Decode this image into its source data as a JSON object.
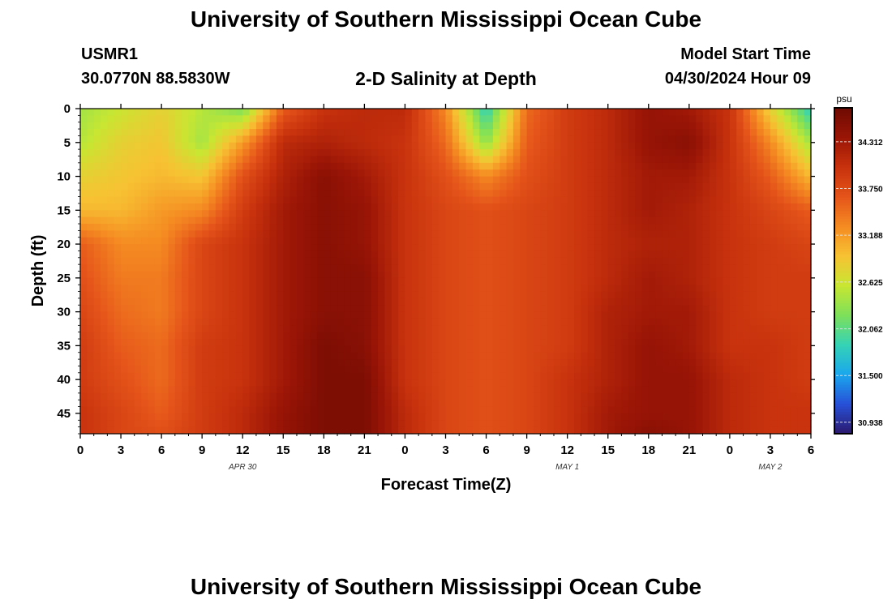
{
  "header": {
    "title": "University of Southern Mississippi Ocean Cube",
    "station_id": "USMR1",
    "station_location": "30.0770N  88.5830W",
    "plot_title": "2-D Salinity at Depth",
    "start_label": "Model Start Time",
    "start_time": "04/30/2024 Hour 09"
  },
  "footer": {
    "title": "University of Southern Mississippi Ocean Cube"
  },
  "colors": {
    "colormap": [
      "#2c1a6e",
      "#2750d8",
      "#1aa7ee",
      "#35d3b5",
      "#7ee05a",
      "#c8e632",
      "#f7c233",
      "#f58b22",
      "#e5541a",
      "#c8320d",
      "#9a1506",
      "#6e0a03"
    ]
  },
  "chart_data": {
    "type": "heatmap",
    "xlabel": "Forecast Time(Z)",
    "ylabel": "Depth (ft)",
    "x_tick_labels": [
      "0",
      "3",
      "6",
      "9",
      "12",
      "15",
      "18",
      "21",
      "0",
      "3",
      "6",
      "9",
      "12",
      "15",
      "18",
      "21",
      "0",
      "3",
      "6"
    ],
    "day_labels": [
      {
        "label": "APR 30",
        "center_hour": 12
      },
      {
        "label": "MAY 1",
        "center_hour": 36
      },
      {
        "label": "MAY 2",
        "center_hour": 51
      }
    ],
    "x_range_hours": [
      0,
      54
    ],
    "y_ticks": [
      0,
      5,
      10,
      15,
      20,
      25,
      30,
      35,
      40,
      45
    ],
    "y_range": [
      0,
      48
    ],
    "y_inverted": true,
    "colorbar": {
      "unit": "psu",
      "range": [
        30.8,
        34.72
      ],
      "tick_labels": [
        "34.312",
        "33.750",
        "33.188",
        "32.625",
        "32.062",
        "31.500",
        "30.938"
      ],
      "tick_values": [
        34.312,
        33.75,
        33.188,
        32.625,
        32.062,
        31.5,
        30.938
      ]
    },
    "time_hours": [
      0,
      3,
      6,
      9,
      12,
      15,
      18,
      21,
      24,
      27,
      30,
      33,
      36,
      39,
      42,
      45,
      48,
      51,
      54
    ],
    "depths_ft": [
      0,
      5,
      10,
      15,
      20,
      25,
      30,
      35,
      40,
      45,
      48
    ],
    "salinity_psu": [
      [
        32.4,
        32.6,
        32.8,
        32.5,
        32.2,
        33.6,
        34.0,
        34.1,
        34.1,
        33.3,
        31.8,
        33.5,
        33.9,
        34.1,
        34.4,
        34.3,
        34.0,
        32.8,
        31.8
      ],
      [
        32.5,
        32.8,
        32.9,
        32.4,
        33.2,
        34.1,
        34.2,
        34.1,
        34.0,
        33.5,
        32.3,
        33.6,
        33.9,
        34.1,
        34.4,
        34.5,
        34.0,
        33.3,
        32.4
      ],
      [
        32.8,
        32.9,
        33.0,
        32.9,
        33.7,
        34.2,
        34.5,
        34.3,
        34.0,
        33.7,
        33.3,
        33.7,
        33.9,
        34.1,
        34.3,
        34.3,
        34.0,
        33.6,
        33.0
      ],
      [
        33.0,
        33.0,
        33.2,
        33.3,
        33.9,
        34.3,
        34.5,
        34.4,
        34.0,
        33.8,
        33.7,
        33.8,
        33.9,
        34.1,
        34.3,
        34.2,
        34.0,
        33.8,
        33.6
      ],
      [
        33.6,
        33.3,
        33.3,
        33.8,
        34.0,
        34.3,
        34.5,
        34.4,
        34.0,
        33.8,
        33.7,
        33.8,
        33.9,
        34.1,
        34.2,
        34.2,
        34.0,
        33.9,
        33.8
      ],
      [
        33.7,
        33.4,
        33.4,
        33.8,
        34.0,
        34.3,
        34.5,
        34.5,
        34.0,
        33.8,
        33.7,
        33.8,
        33.9,
        34.1,
        34.3,
        34.2,
        34.0,
        33.9,
        33.9
      ],
      [
        33.8,
        33.5,
        33.4,
        33.8,
        34.0,
        34.3,
        34.5,
        34.5,
        34.0,
        33.8,
        33.7,
        33.8,
        33.9,
        34.2,
        34.3,
        34.3,
        34.0,
        33.9,
        33.9
      ],
      [
        33.9,
        33.6,
        33.5,
        33.9,
        34.0,
        34.3,
        34.6,
        34.5,
        34.0,
        33.8,
        33.7,
        33.8,
        33.9,
        34.2,
        34.4,
        34.3,
        34.0,
        34.0,
        33.9
      ],
      [
        33.9,
        33.7,
        33.5,
        33.9,
        34.0,
        34.3,
        34.6,
        34.6,
        34.0,
        33.8,
        33.7,
        33.8,
        34.0,
        34.2,
        34.4,
        34.4,
        34.1,
        34.0,
        33.9
      ],
      [
        34.0,
        33.8,
        33.6,
        33.9,
        34.1,
        34.4,
        34.6,
        34.6,
        34.1,
        33.8,
        33.7,
        33.8,
        34.0,
        34.3,
        34.4,
        34.4,
        34.1,
        34.0,
        34.0
      ],
      [
        34.0,
        33.8,
        33.7,
        33.9,
        34.1,
        34.4,
        34.6,
        34.6,
        34.1,
        33.8,
        33.7,
        33.8,
        34.0,
        34.3,
        34.5,
        34.4,
        34.1,
        34.0,
        34.0
      ]
    ]
  }
}
